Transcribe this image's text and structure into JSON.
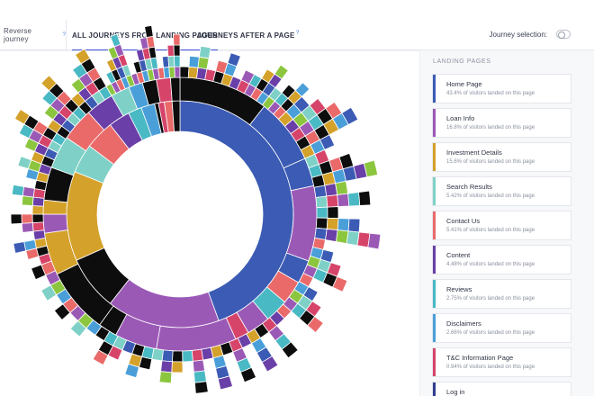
{
  "tabs": {
    "reverse": "Reverse journey",
    "all": "ALL JOURNEYS FROM LANDING PAGES",
    "after": "JOURNEYS AFTER A PAGE",
    "help": "?"
  },
  "journey_selection_label": "Journey selection:",
  "journey_selection_on": false,
  "panel": {
    "title": "LANDING PAGES",
    "items": [
      {
        "name": "Home Page",
        "pct": "43.4% of visitors landed on this page",
        "color": "#3b5bb4"
      },
      {
        "name": "Loan Info",
        "pct": "16.8% of visitors landed on this page",
        "color": "#9b59b6"
      },
      {
        "name": "Investment Details",
        "pct": "15.6% of visitors landed on this page",
        "color": "#d4a12a"
      },
      {
        "name": "Search Results",
        "pct": "5.42% of visitors landed on this page",
        "color": "#7fd1c7"
      },
      {
        "name": "Contact Us",
        "pct": "5.41% of visitors landed on this page",
        "color": "#ea6a6a"
      },
      {
        "name": "Content",
        "pct": "4.48% of visitors landed on this page",
        "color": "#6a3fa8"
      },
      {
        "name": "Reviews",
        "pct": "2.75% of visitors landed on this page",
        "color": "#49b9c4"
      },
      {
        "name": "Disclaimers",
        "pct": "2.66% of visitors landed on this page",
        "color": "#4a9fd9"
      },
      {
        "name": "T&C Information Page",
        "pct": "0.94% of visitors landed on this page",
        "color": "#d6446a"
      },
      {
        "name": "Log in",
        "pct": "",
        "color": "#2f3f8f"
      }
    ]
  },
  "colors": {
    "home": "#3b5bb4",
    "loan": "#9b59b6",
    "invest": "#d4a12a",
    "search": "#7fd1c7",
    "contact": "#ea6a6a",
    "content": "#6a3fa8",
    "reviews": "#49b9c4",
    "disclaimers": "#4a9fd9",
    "tc": "#d6446a",
    "black": "#0d0d0d",
    "green": "#8cc63f",
    "accent_tab": "#3d4fd6"
  }
}
